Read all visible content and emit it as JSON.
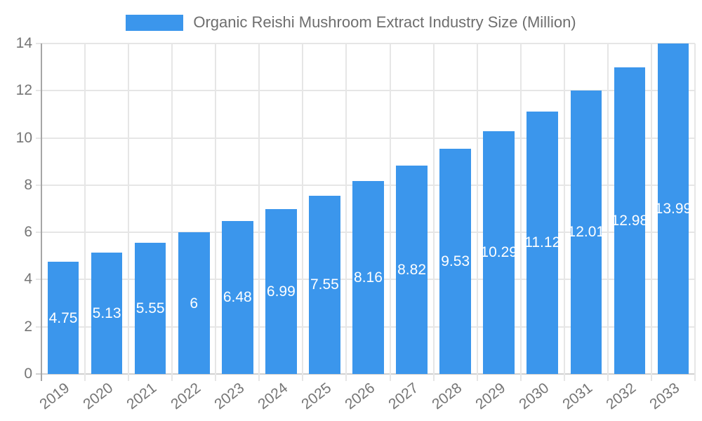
{
  "chart_data": {
    "type": "bar",
    "title": "Organic Reishi Mushroom Extract Industry Size (Million)",
    "categories": [
      "2019",
      "2020",
      "2021",
      "2022",
      "2023",
      "2024",
      "2025",
      "2026",
      "2027",
      "2028",
      "2029",
      "2030",
      "2031",
      "2032",
      "2033"
    ],
    "values": [
      4.75,
      5.13,
      5.55,
      6,
      6.48,
      6.99,
      7.55,
      8.16,
      8.82,
      9.53,
      10.29,
      11.12,
      12.01,
      12.98,
      13.99
    ],
    "ylim": [
      0,
      14
    ],
    "yticks": [
      0,
      2,
      4,
      6,
      8,
      10,
      12,
      14
    ],
    "grid": true,
    "legend_position": "top",
    "bar_value_labels_inside": true,
    "colors": {
      "bar": "#3B96EC",
      "grid_line": "#E6E6E6",
      "y_axis_line": "#A6A6A6",
      "x_axis_line": "#D0D0D0",
      "tick_label": "#757575",
      "title": "#6E6E6E",
      "bar_label": "#FFFFFF",
      "background": "#FFFFFF"
    }
  }
}
